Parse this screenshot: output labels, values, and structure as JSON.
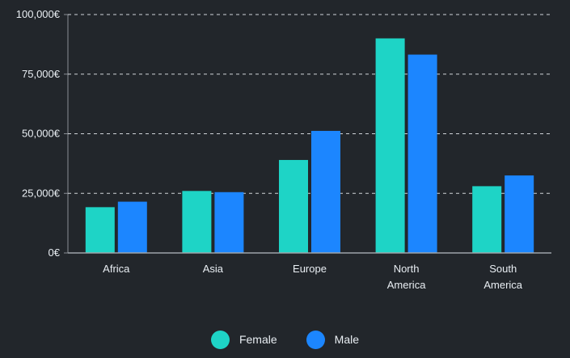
{
  "chart_data": {
    "type": "bar",
    "categories": [
      [
        "Africa"
      ],
      [
        "Asia"
      ],
      [
        "Europe"
      ],
      [
        "North",
        "America"
      ],
      [
        "South",
        "America"
      ]
    ],
    "series": [
      {
        "name": "Female",
        "color": "#1ed4c6",
        "values": [
          19200,
          26000,
          39000,
          90000,
          28000
        ]
      },
      {
        "name": "Male",
        "color": "#1c86ff",
        "values": [
          21500,
          25500,
          51200,
          83200,
          32500
        ]
      }
    ],
    "yticks": [
      0,
      25000,
      50000,
      75000,
      100000
    ],
    "ytick_labels": [
      "0€",
      "25,000€",
      "50,000€",
      "75,000€",
      "100,000€"
    ],
    "ylim": [
      0,
      100000
    ],
    "grid": true,
    "legend": "bottom-center",
    "title": "",
    "xlabel": "",
    "ylabel": ""
  },
  "legend": {
    "female_label": "Female",
    "female_color": "#1ed4c6",
    "male_label": "Male",
    "male_color": "#1c86ff"
  }
}
